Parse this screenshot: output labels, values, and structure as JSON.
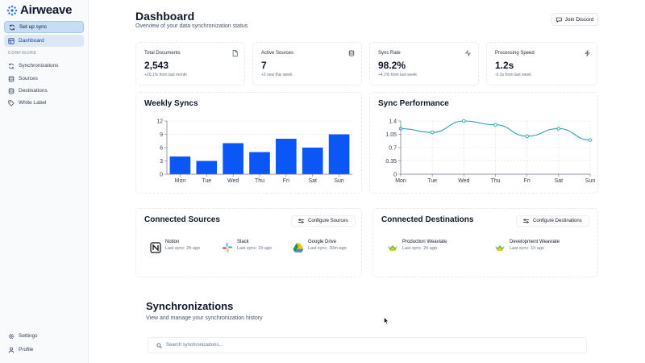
{
  "app": {
    "logo_text": "Airweave"
  },
  "sidebar": {
    "setup_label": "Set up sync",
    "dashboard_label": "Dashboard",
    "section_label": "CONFIGURE",
    "items": [
      {
        "label": "Synchronizations",
        "icon": "refresh-icon"
      },
      {
        "label": "Sources",
        "icon": "database-icon"
      },
      {
        "label": "Destinations",
        "icon": "database-icon"
      },
      {
        "label": "White Label",
        "icon": "tag-icon"
      }
    ],
    "bottom": [
      {
        "label": "Settings",
        "icon": "gear-icon"
      },
      {
        "label": "Profile",
        "icon": "user-icon"
      }
    ]
  },
  "header": {
    "title": "Dashboard",
    "subtitle": "Overview of your data synchronization status",
    "discord_label": "Join Discord"
  },
  "stats": [
    {
      "title": "Total Documents",
      "value": "2,543",
      "delta": "+20.1% from last month",
      "icon": "document-icon"
    },
    {
      "title": "Active Sources",
      "value": "7",
      "delta": "+2 new this week",
      "icon": "database-icon"
    },
    {
      "title": "Sync Rate",
      "value": "98.2%",
      "delta": "+4.1% from last week",
      "icon": "activity-icon"
    },
    {
      "title": "Processing Speed",
      "value": "1.2s",
      "delta": "-0.3s from last week",
      "icon": "lightning-icon"
    }
  ],
  "chart_data": [
    {
      "type": "bar",
      "title": "Weekly Syncs",
      "categories": [
        "Mon",
        "Tue",
        "Wed",
        "Thu",
        "Fri",
        "Sat",
        "Sun"
      ],
      "values": [
        4,
        3,
        7,
        5,
        8,
        6,
        9
      ],
      "ylim": [
        0,
        12
      ],
      "yticks": [
        0,
        3,
        6,
        9,
        12
      ],
      "grid": true,
      "color": "#0b57f5"
    },
    {
      "type": "line",
      "title": "Sync Performance",
      "categories": [
        "Mon",
        "Tue",
        "Wed",
        "Thu",
        "Fri",
        "Sat",
        "Sun"
      ],
      "values": [
        1.2,
        1.1,
        1.4,
        1.3,
        1.0,
        1.2,
        0.9
      ],
      "ylim": [
        0,
        1.4
      ],
      "yticks": [
        0,
        0.35,
        0.7,
        1.05,
        1.4
      ],
      "grid": true,
      "color": "#22a6b3"
    }
  ],
  "sources": {
    "title": "Connected Sources",
    "button_label": "Configure Sources",
    "items": [
      {
        "name": "Notion",
        "sync": "Last sync: 2h ago",
        "icon": "notion-icon"
      },
      {
        "name": "Slack",
        "sync": "Last sync: 1h ago",
        "icon": "slack-icon"
      },
      {
        "name": "Google Drive",
        "sync": "Last sync: 30m ago",
        "icon": "google-drive-icon"
      }
    ]
  },
  "destinations": {
    "title": "Connected Destinations",
    "button_label": "Configure Destinations",
    "items": [
      {
        "name": "Production Weaviate",
        "sync": "Last sync: 2h ago",
        "icon": "weaviate-icon"
      },
      {
        "name": "Development Weaviate",
        "sync": "Last sync: 1h ago",
        "icon": "weaviate-icon"
      }
    ]
  },
  "synchronizations": {
    "title": "Synchronizations",
    "subtitle": "View and manage your synchronization history",
    "search_placeholder": "Search synchronizations..."
  }
}
